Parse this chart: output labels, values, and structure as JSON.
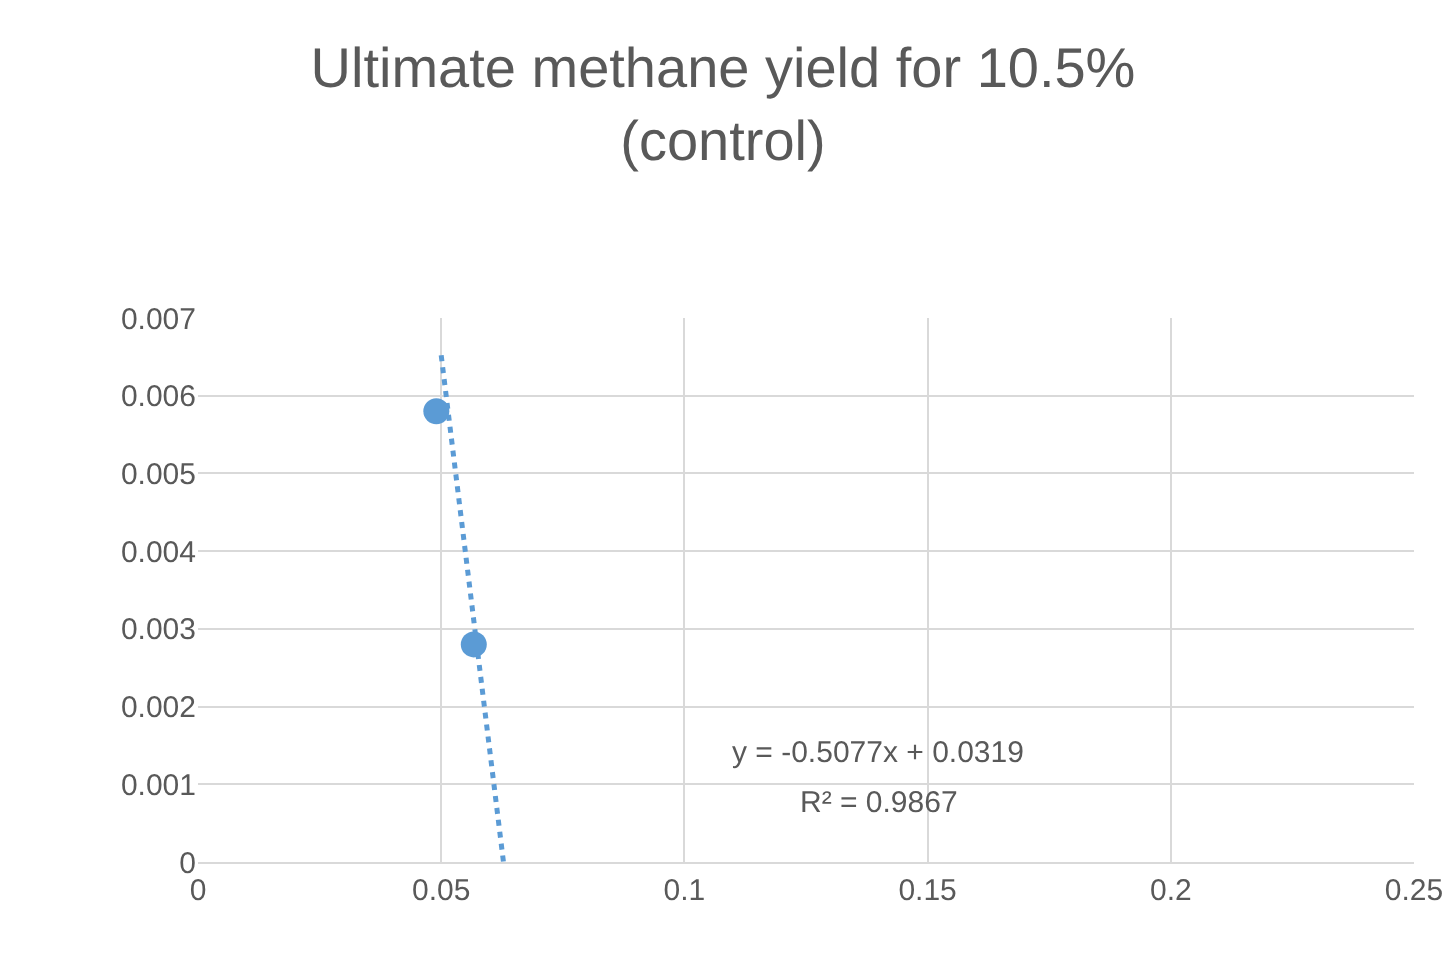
{
  "chart_data": {
    "type": "scatter",
    "title": "Ultimate methane yield for 10.5%\n(control)",
    "series": [
      {
        "type": "scatter",
        "color": "#5b9bd5",
        "marker": "circle",
        "x": [
          0.049,
          0.0567
        ],
        "values": [
          0.0058,
          0.0028
        ]
      },
      {
        "type": "line",
        "color": "#5b9bd5",
        "line_style": "dotted",
        "marker": "none",
        "x": [
          0.05,
          0.0628
        ],
        "values": [
          0.00652,
          0
        ]
      }
    ],
    "xlim": [
      0,
      0.25
    ],
    "xticks": [
      0,
      0.05,
      0.1,
      0.15,
      0.2,
      0.25
    ],
    "ylim": [
      0,
      0.007
    ],
    "yticks": [
      0,
      0.001,
      0.002,
      0.003,
      0.004,
      0.005,
      0.006,
      0.007
    ],
    "grid": true,
    "annotations": [
      "y = -0.5077x + 0.0319",
      "R² = 0.9867"
    ]
  }
}
